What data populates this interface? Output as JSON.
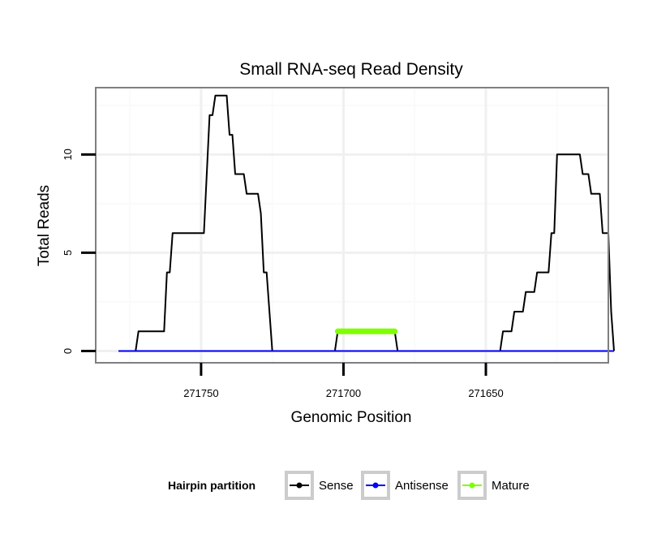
{
  "chart_data": {
    "type": "line",
    "title": "Small RNA-seq Read Density",
    "xlabel": "Genomic Position",
    "ylabel": "Total Reads",
    "xlim": [
      271787,
      271607
    ],
    "ylim": [
      -0.6,
      13.4
    ],
    "x_reversed": true,
    "x_ticks": [
      271750,
      271700,
      271650
    ],
    "x_tick_labels": [
      "271750",
      "271700",
      "271650"
    ],
    "y_ticks": [
      0,
      5,
      10
    ],
    "y_tick_labels": [
      "0",
      "5",
      "10"
    ],
    "grid": true,
    "legend": {
      "title": "Hairpin partition",
      "position": "bottom",
      "entries": [
        "Sense",
        "Antisense",
        "Mature"
      ]
    },
    "series": [
      {
        "name": "Sense",
        "color": "#000000",
        "points": [
          [
            271779,
            0
          ],
          [
            271773,
            0
          ],
          [
            271772,
            1
          ],
          [
            271763,
            1
          ],
          [
            271762,
            4
          ],
          [
            271761,
            4
          ],
          [
            271760,
            6
          ],
          [
            271749,
            6
          ],
          [
            271747,
            12
          ],
          [
            271746,
            12
          ],
          [
            271745,
            13
          ],
          [
            271741,
            13
          ],
          [
            271740,
            11
          ],
          [
            271739,
            11
          ],
          [
            271738,
            9
          ],
          [
            271735,
            9
          ],
          [
            271734,
            8
          ],
          [
            271730,
            8
          ],
          [
            271729,
            7
          ],
          [
            271728,
            4
          ],
          [
            271727,
            4
          ],
          [
            271725,
            0
          ],
          [
            271703,
            0
          ],
          [
            271702,
            1
          ],
          [
            271682,
            1
          ],
          [
            271681,
            0
          ],
          [
            271645,
            0
          ],
          [
            271644,
            1
          ],
          [
            271641,
            1
          ],
          [
            271640,
            2
          ],
          [
            271637,
            2
          ],
          [
            271636,
            3
          ],
          [
            271633,
            3
          ],
          [
            271632,
            4
          ],
          [
            271628,
            4
          ],
          [
            271627,
            6
          ],
          [
            271626,
            6
          ],
          [
            271625,
            10
          ],
          [
            271617,
            10
          ],
          [
            271616,
            9
          ],
          [
            271614,
            9
          ],
          [
            271613,
            8
          ],
          [
            271610,
            8
          ],
          [
            271609,
            6
          ],
          [
            271607,
            6
          ],
          [
            271606,
            2
          ],
          [
            271605,
            0
          ]
        ]
      },
      {
        "name": "Antisense",
        "color": "#0000ff",
        "points": [
          [
            271779,
            0
          ],
          [
            271605,
            0
          ]
        ]
      },
      {
        "name": "Mature",
        "color": "#7fff00",
        "points": [
          [
            271702,
            1
          ],
          [
            271682,
            1
          ]
        ]
      }
    ]
  }
}
